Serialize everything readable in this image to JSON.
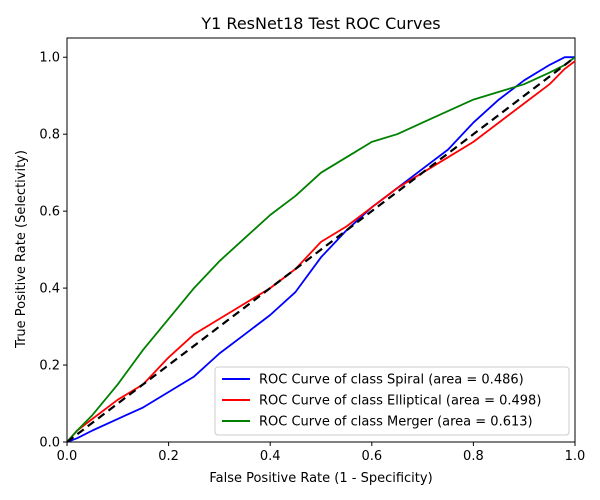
{
  "chart_data": {
    "type": "line",
    "title": "Y1 ResNet18 Test ROC Curves",
    "xlabel": "False Positive Rate (1 - Specificity)",
    "ylabel": "True Positive Rate (Selectivity)",
    "xlim": [
      0,
      1
    ],
    "ylim": [
      0,
      1.05
    ],
    "xticks": [
      "0.0",
      "0.2",
      "0.4",
      "0.6",
      "0.8",
      "1.0"
    ],
    "yticks": [
      "0.0",
      "0.2",
      "0.4",
      "0.6",
      "0.8",
      "1.0"
    ],
    "grid": false,
    "legend_position": "lower-right",
    "baseline": {
      "x": [
        0,
        1
      ],
      "y": [
        0,
        1
      ],
      "color": "#000000",
      "style": "dashed"
    },
    "series": [
      {
        "name": "ROC Curve of class Spiral (area = 0.486)",
        "color": "#0000ff",
        "x": [
          0,
          0.02,
          0.05,
          0.1,
          0.15,
          0.2,
          0.25,
          0.3,
          0.35,
          0.4,
          0.45,
          0.5,
          0.55,
          0.6,
          0.65,
          0.7,
          0.75,
          0.8,
          0.85,
          0.9,
          0.95,
          0.98,
          1.0
        ],
        "y": [
          0,
          0.01,
          0.03,
          0.06,
          0.09,
          0.13,
          0.17,
          0.23,
          0.28,
          0.33,
          0.39,
          0.48,
          0.55,
          0.61,
          0.66,
          0.71,
          0.76,
          0.83,
          0.89,
          0.94,
          0.98,
          1.0,
          1.0
        ]
      },
      {
        "name": "ROC Curve of class Elliptical (area = 0.498)",
        "color": "#ff0000",
        "x": [
          0,
          0.02,
          0.05,
          0.1,
          0.15,
          0.2,
          0.25,
          0.3,
          0.35,
          0.4,
          0.45,
          0.5,
          0.55,
          0.6,
          0.65,
          0.7,
          0.75,
          0.8,
          0.85,
          0.9,
          0.95,
          0.98,
          1.0
        ],
        "y": [
          0,
          0.03,
          0.06,
          0.11,
          0.15,
          0.22,
          0.28,
          0.32,
          0.36,
          0.4,
          0.45,
          0.52,
          0.56,
          0.61,
          0.66,
          0.7,
          0.74,
          0.78,
          0.83,
          0.88,
          0.93,
          0.97,
          0.99
        ]
      },
      {
        "name": "ROC Curve of class Merger (area = 0.613)",
        "color": "#008000",
        "x": [
          0,
          0.02,
          0.05,
          0.1,
          0.15,
          0.2,
          0.25,
          0.3,
          0.35,
          0.4,
          0.45,
          0.5,
          0.55,
          0.6,
          0.65,
          0.7,
          0.75,
          0.8,
          0.85,
          0.9,
          0.95,
          0.98,
          1.0
        ],
        "y": [
          0,
          0.03,
          0.07,
          0.15,
          0.24,
          0.32,
          0.4,
          0.47,
          0.53,
          0.59,
          0.64,
          0.7,
          0.74,
          0.78,
          0.8,
          0.83,
          0.86,
          0.89,
          0.91,
          0.93,
          0.96,
          0.98,
          1.0
        ]
      }
    ]
  }
}
